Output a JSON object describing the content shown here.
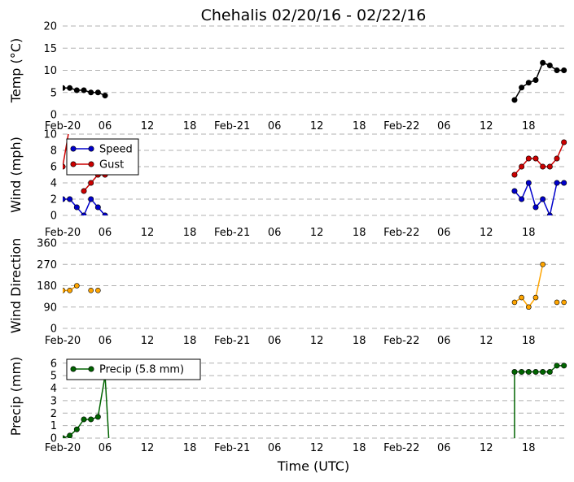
{
  "figure": {
    "title": "Chehalis 02/20/16 - 02/22/16",
    "xlabel": "Time (UTC)"
  },
  "x_ticks": [
    "Feb-20",
    "06",
    "12",
    "18",
    "Feb-21",
    "06",
    "12",
    "18",
    "Feb-22",
    "06",
    "12",
    "18"
  ],
  "x_tick_hours": [
    0,
    6,
    12,
    18,
    24,
    30,
    36,
    42,
    48,
    54,
    60,
    66
  ],
  "xlim": [
    0,
    71.5
  ],
  "chart_data": [
    {
      "type": "line",
      "name": "temp",
      "ylabel": "Temp ($^\\circ$C)",
      "ylabel_display": "Temp (°C)",
      "ylim": [
        0,
        20
      ],
      "yticks": [
        0,
        5,
        10,
        15,
        20
      ],
      "grid": true,
      "series": [
        {
          "color": "#000000",
          "x": [
            0,
            1,
            2,
            3,
            4,
            5,
            6,
            64,
            65,
            66,
            67,
            68,
            69,
            70,
            71
          ],
          "y": [
            6,
            6,
            5.5,
            5.5,
            5,
            5,
            4.3,
            3.3,
            6.1,
            7.2,
            7.8,
            11.7,
            11.1,
            10,
            10
          ],
          "segments": [
            [
              0,
              6
            ],
            [
              7,
              14
            ]
          ]
        }
      ]
    },
    {
      "type": "line",
      "name": "wind",
      "ylabel": "Wind (mph)",
      "ylim": [
        0,
        10
      ],
      "yticks": [
        0,
        2,
        4,
        6,
        8,
        10
      ],
      "grid": true,
      "legend": "top-left",
      "series": [
        {
          "name": "Speed",
          "color": "#0000cc",
          "x": [
            0,
            1,
            2,
            3,
            4,
            5,
            6,
            64,
            65,
            66,
            67,
            68,
            69,
            70,
            71
          ],
          "y": [
            2,
            2,
            1,
            0,
            2,
            1,
            0,
            3,
            2,
            4,
            1,
            2,
            0,
            4,
            4
          ],
          "segments": [
            [
              0,
              6
            ],
            [
              7,
              14
            ]
          ]
        },
        {
          "name": "Gust",
          "color": "#cc0000",
          "x": [
            0,
            3,
            4,
            5,
            6,
            64,
            65,
            66,
            67,
            68,
            69,
            70,
            71
          ],
          "y": [
            6,
            3,
            4,
            5,
            5,
            5,
            6,
            7,
            7,
            6,
            6,
            7,
            9
          ],
          "segments": [
            [
              1,
              4
            ],
            [
              5,
              12
            ]
          ],
          "gap_lines": [
            [
              0,
              6,
              0.8,
              10
            ]
          ]
        }
      ]
    },
    {
      "type": "scatter",
      "name": "direction",
      "ylabel": "Wind Direction",
      "ylim": [
        0,
        360
      ],
      "yticks": [
        0,
        90,
        180,
        270,
        360
      ],
      "grid": true,
      "series": [
        {
          "color": "#ffa500",
          "x": [
            0,
            1,
            2,
            4,
            5,
            64,
            65,
            66,
            67,
            68,
            70,
            71
          ],
          "y": [
            160,
            160,
            180,
            160,
            160,
            110,
            130,
            90,
            130,
            270,
            110,
            110
          ],
          "segments": [
            [
              0,
              2
            ],
            [
              5,
              9
            ]
          ]
        }
      ]
    },
    {
      "type": "line",
      "name": "precip",
      "ylabel": "Precip (mm)",
      "ylim": [
        0,
        6.7
      ],
      "yticks": [
        0,
        1,
        2,
        3,
        4,
        5,
        6
      ],
      "grid": true,
      "legend": "top-left",
      "series": [
        {
          "name": "Precip (5.8 mm)",
          "color": "#006400",
          "x": [
            0,
            1,
            2,
            3,
            4,
            5,
            6,
            64,
            65,
            66,
            67,
            68,
            69,
            70,
            71
          ],
          "y": [
            0,
            0.2,
            0.7,
            1.5,
            1.5,
            1.7,
            5,
            5.3,
            5.3,
            5.3,
            5.3,
            5.3,
            5.3,
            5.8,
            5.8
          ],
          "segments": [
            [
              0,
              6
            ],
            [
              7,
              14
            ]
          ],
          "drop_lines": [
            [
              6,
              5,
              6.6,
              -0.7
            ],
            [
              64,
              -0.7,
              64,
              5.3
            ]
          ]
        }
      ]
    }
  ]
}
